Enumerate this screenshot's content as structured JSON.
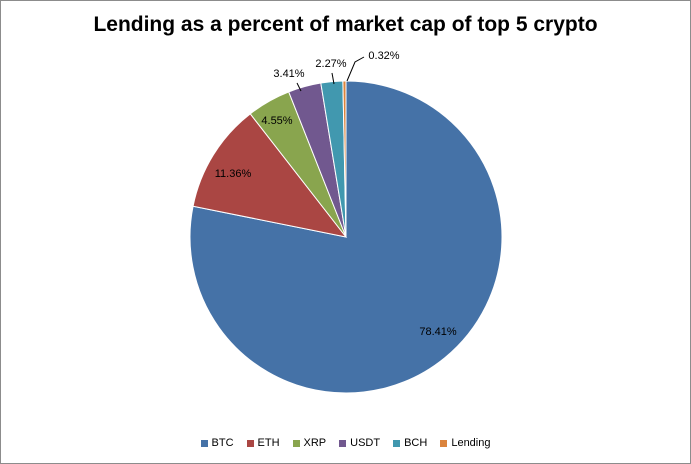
{
  "chart_data": {
    "type": "pie",
    "title": "Lending as a percent of market cap of top 5 crypto",
    "slices": [
      {
        "label": "BTC",
        "value": 78.41,
        "value_label": "78.41%",
        "color": "#4572A7"
      },
      {
        "label": "ETH",
        "value": 11.36,
        "value_label": "11.36%",
        "color": "#AA4643"
      },
      {
        "label": "XRP",
        "value": 4.55,
        "value_label": "4.55%",
        "color": "#89A54E"
      },
      {
        "label": "USDT",
        "value": 3.41,
        "value_label": "3.41%",
        "color": "#71588F"
      },
      {
        "label": "BCH",
        "value": 2.27,
        "value_label": "2.27%",
        "color": "#4198AF"
      },
      {
        "label": "Lending",
        "value": 0.32,
        "value_label": "0.32%",
        "color": "#DB843D"
      }
    ],
    "legend_position": "bottom"
  }
}
